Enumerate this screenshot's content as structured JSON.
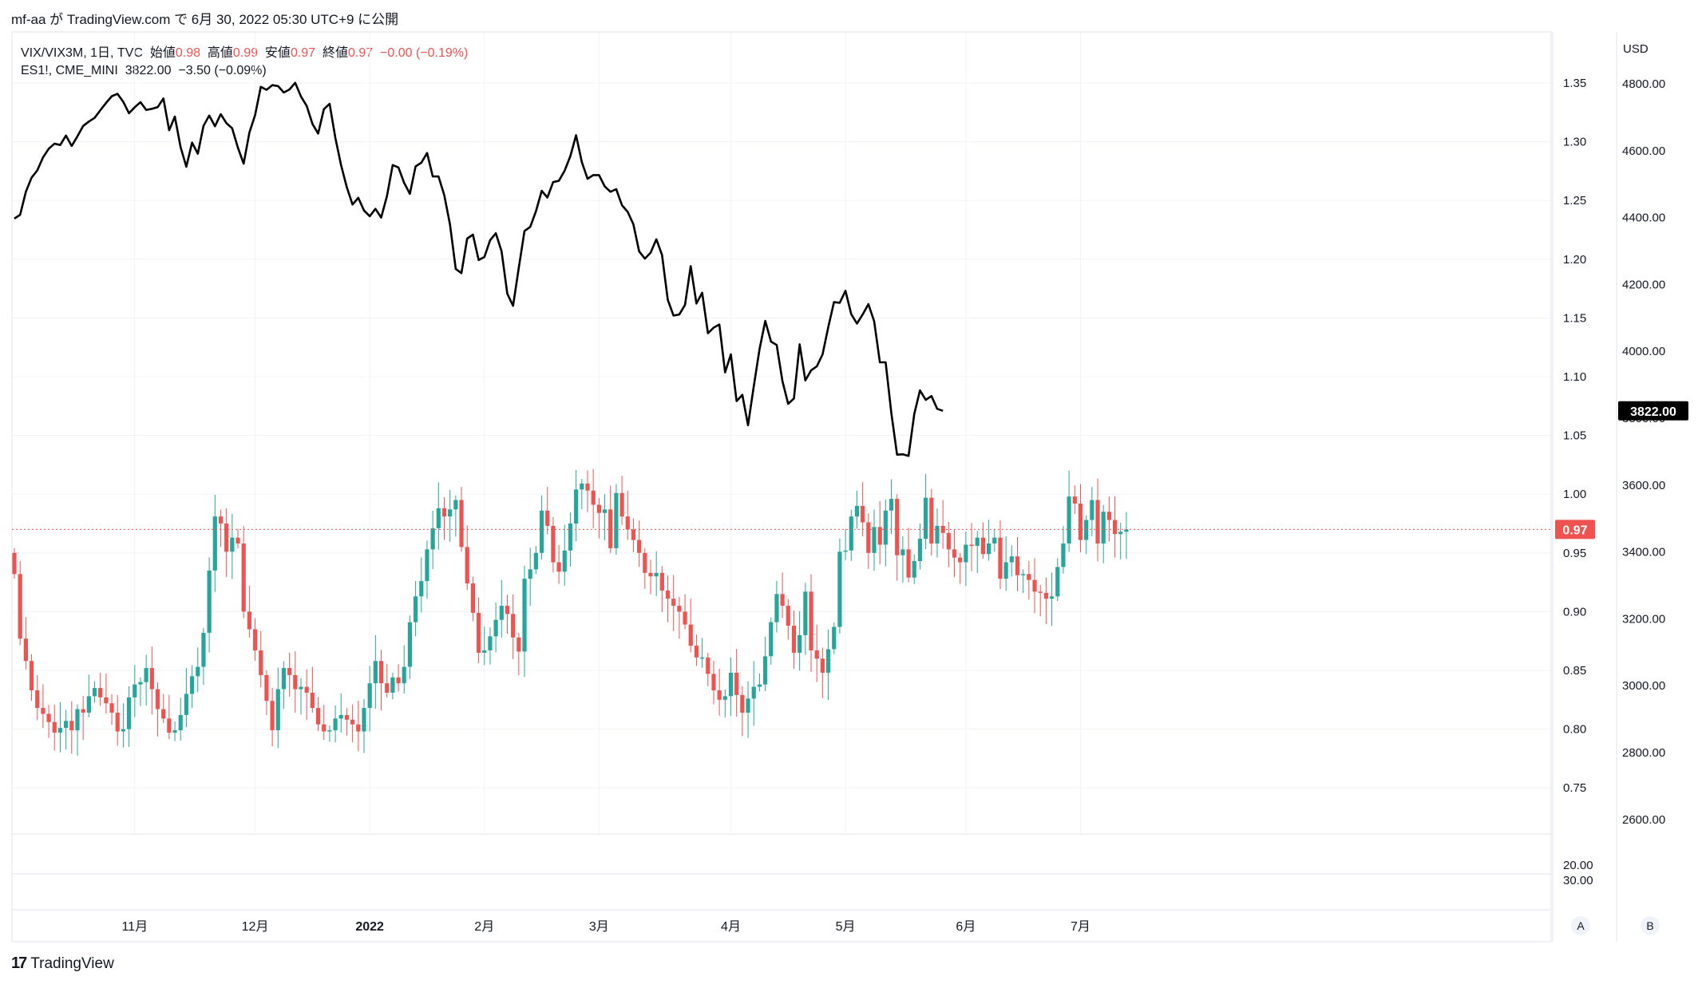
{
  "header": {
    "title": "mf-aa が TradingView.com で 6月 30, 2022 05:30 UTC+9 に公開"
  },
  "legend1": {
    "symbol": "VIX/VIX3M, 1日, TVC",
    "open_label": "始値",
    "open": "0.98",
    "high_label": "高値",
    "high": "0.99",
    "low_label": "安値",
    "low": "0.97",
    "close_label": "終値",
    "close": "0.97",
    "change": "−0.00 (−0.19%)"
  },
  "legend2": {
    "symbol": "ES1!, CME_MINI",
    "value": "3822.00",
    "change": "−3.50 (−0.09%)"
  },
  "footer": {
    "brand": "TradingView"
  },
  "colors": {
    "up": "#26a69a",
    "down": "#ef5350",
    "line": "#000000",
    "grid": "#f0f3fa",
    "text": "#131722"
  },
  "chart_data": [
    {
      "type": "candlestick",
      "name": "VIX/VIX3M",
      "y_axis": "left",
      "ylim": [
        0.7,
        1.4
      ],
      "tick_labels": [
        "1.35",
        "1.30",
        "1.25",
        "1.20",
        "1.15",
        "1.10",
        "1.05",
        "1.00",
        "0.95",
        "0.90",
        "0.85",
        "0.80",
        "0.75"
      ],
      "last_value_label": "0.97",
      "last_value": 0.97,
      "x_labels": [
        "11月",
        "12月",
        "2022",
        "2月",
        "3月",
        "4月",
        "5月",
        "6月",
        "7月"
      ],
      "x_label_index": [
        21,
        42,
        62,
        82,
        102,
        125,
        145,
        166,
        186
      ],
      "ohlc_close": [
        0.932,
        0.877,
        0.858,
        0.833,
        0.818,
        0.813,
        0.806,
        0.797,
        0.801,
        0.807,
        0.799,
        0.817,
        0.814,
        0.828,
        0.835,
        0.827,
        0.822,
        0.814,
        0.798,
        0.8,
        0.827,
        0.838,
        0.84,
        0.852,
        0.834,
        0.817,
        0.809,
        0.797,
        0.799,
        0.812,
        0.83,
        0.845,
        0.853,
        0.882,
        0.935,
        0.981,
        0.975,
        0.951,
        0.963,
        0.958,
        0.9,
        0.885,
        0.867,
        0.846,
        0.824,
        0.799,
        0.834,
        0.852,
        0.846,
        0.834,
        0.836,
        0.831,
        0.818,
        0.804,
        0.798,
        0.799,
        0.809,
        0.812,
        0.808,
        0.804,
        0.798,
        0.818,
        0.839,
        0.858,
        0.839,
        0.831,
        0.844,
        0.839,
        0.853,
        0.891,
        0.913,
        0.926,
        0.953,
        0.971,
        0.988,
        0.981,
        0.987,
        0.995,
        0.955,
        0.924,
        0.899,
        0.865,
        0.867,
        0.879,
        0.893,
        0.905,
        0.898,
        0.878,
        0.866,
        0.928,
        0.936,
        0.95,
        0.986,
        0.973,
        0.942,
        0.934,
        0.952,
        0.975,
        1.004,
        1.009,
        1.003,
        0.991,
        0.984,
        0.987,
        0.954,
        1.001,
        0.981,
        0.97,
        0.961,
        0.95,
        0.933,
        0.93,
        0.933,
        0.918,
        0.911,
        0.905,
        0.9,
        0.889,
        0.871,
        0.861,
        0.861,
        0.847,
        0.833,
        0.825,
        0.828,
        0.848,
        0.829,
        0.814,
        0.826,
        0.836,
        0.838,
        0.862,
        0.891,
        0.915,
        0.905,
        0.888,
        0.865,
        0.88,
        0.917,
        0.867,
        0.86,
        0.848,
        0.868,
        0.887,
        0.951,
        0.952,
        0.981,
        0.99,
        0.976,
        0.95,
        0.972,
        0.957,
        0.986,
        0.996,
        0.948,
        0.953,
        0.929,
        0.943,
        0.962,
        0.997,
        0.958,
        0.973,
        0.967,
        0.953,
        0.946,
        0.942,
        0.957,
        0.956,
        0.963,
        0.949,
        0.958,
        0.963,
        0.928,
        0.942,
        0.947,
        0.931,
        0.932,
        0.927,
        0.917,
        0.916,
        0.911,
        0.913,
        0.938,
        0.958,
        0.998,
        0.992,
        0.961,
        0.978,
        0.995,
        0.958,
        0.985,
        0.978,
        0.966,
        0.968,
        0.97
      ]
    },
    {
      "type": "line",
      "name": "ES1!",
      "y_axis": "right",
      "unit": "USD",
      "ylim": [
        2500,
        4850
      ],
      "tick_labels": [
        "4800.00",
        "4600.00",
        "4400.00",
        "4200.00",
        "4000.00",
        "3800.00",
        "3600.00",
        "3400.00",
        "3200.00",
        "3000.00",
        "2800.00",
        "2600.00"
      ],
      "last_value_label": "3822.00",
      "last_value": 3822,
      "x_labels": [
        "11月",
        "12月",
        "2022",
        "2月",
        "3月",
        "4月",
        "5月",
        "6月",
        "7月"
      ],
      "values": [
        4397,
        4408,
        4477,
        4519,
        4541,
        4580,
        4606,
        4621,
        4617,
        4645,
        4614,
        4643,
        4674,
        4687,
        4698,
        4721,
        4743,
        4763,
        4770,
        4746,
        4712,
        4730,
        4745,
        4722,
        4725,
        4730,
        4756,
        4661,
        4702,
        4611,
        4552,
        4624,
        4591,
        4674,
        4705,
        4673,
        4709,
        4682,
        4667,
        4609,
        4561,
        4654,
        4707,
        4791,
        4782,
        4796,
        4793,
        4774,
        4783,
        4803,
        4762,
        4734,
        4680,
        4651,
        4724,
        4740,
        4638,
        4556,
        4491,
        4439,
        4459,
        4421,
        4404,
        4426,
        4400,
        4464,
        4557,
        4550,
        4504,
        4471,
        4553,
        4564,
        4593,
        4523,
        4523,
        4467,
        4379,
        4246,
        4234,
        4337,
        4349,
        4273,
        4282,
        4332,
        4353,
        4299,
        4172,
        4136,
        4249,
        4360,
        4372,
        4419,
        4480,
        4460,
        4506,
        4510,
        4540,
        4584,
        4646,
        4566,
        4516,
        4527,
        4527,
        4493,
        4477,
        4485,
        4437,
        4417,
        4380,
        4299,
        4277,
        4295,
        4335,
        4288,
        4154,
        4107,
        4110,
        4139,
        4255,
        4143,
        4175,
        4054,
        4071,
        4080,
        3937,
        3991,
        3851,
        3870,
        3779,
        3895,
        4006,
        4091,
        4029,
        4019,
        3911,
        3843,
        3859,
        4021,
        3913,
        3943,
        3955,
        3991,
        4073,
        4147,
        4145,
        4181,
        4111,
        4083,
        4110,
        4141,
        4090,
        3967,
        3967,
        3816,
        3691,
        3692,
        3687,
        3813,
        3883,
        3855,
        3866,
        3828,
        3822
      ]
    }
  ],
  "lower_pane": {
    "tick_labels": [
      "20.00",
      "30.00"
    ]
  },
  "buttons": {
    "auto": "A",
    "right": "B"
  }
}
